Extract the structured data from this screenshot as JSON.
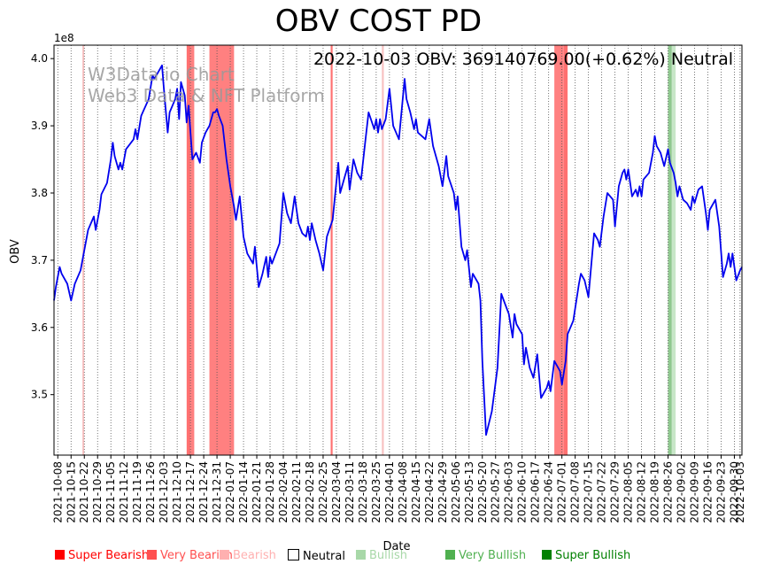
{
  "chart_data": {
    "type": "line",
    "title": "OBV COST PD",
    "annotation": "2022-10-03 OBV: 369140769.00(+0.62%) Neutral",
    "watermark": [
      "W3Data.io Chart",
      "Web3 Data & NFT Platform"
    ],
    "xlabel": "Date",
    "ylabel": "OBV",
    "y_multiplier_label": "1e8",
    "ylim": [
      3.41,
      4.02
    ],
    "y_ticks": [
      3.5,
      3.6,
      3.7,
      3.8,
      3.9,
      4.0
    ],
    "y_tick_labels": [
      "3.5",
      "3.6",
      "3.7",
      "3.8",
      "3.9",
      "4.0"
    ],
    "x_range": [
      "2021-10-06",
      "2022-10-04"
    ],
    "x_ticks": [
      "2021-10-08",
      "2021-10-15",
      "2021-10-22",
      "2021-10-29",
      "2021-11-05",
      "2021-11-12",
      "2021-11-19",
      "2021-11-26",
      "2021-12-03",
      "2021-12-10",
      "2021-12-17",
      "2021-12-24",
      "2021-12-31",
      "2022-01-07",
      "2022-01-14",
      "2022-01-21",
      "2022-01-28",
      "2022-02-04",
      "2022-02-11",
      "2022-02-18",
      "2022-02-25",
      "2022-03-04",
      "2022-03-11",
      "2022-03-18",
      "2022-03-25",
      "2022-04-01",
      "2022-04-08",
      "2022-04-15",
      "2022-04-22",
      "2022-04-29",
      "2022-05-06",
      "2022-05-13",
      "2022-05-20",
      "2022-05-27",
      "2022-06-03",
      "2022-06-10",
      "2022-06-17",
      "2022-06-24",
      "2022-07-01",
      "2022-07-08",
      "2022-07-15",
      "2022-07-22",
      "2022-07-29",
      "2022-08-05",
      "2022-08-12",
      "2022-08-19",
      "2022-08-26",
      "2022-09-02",
      "2022-09-09",
      "2022-09-16",
      "2022-09-23",
      "2022-09-30",
      "2022-10-03"
    ],
    "grid": "vertical dotted",
    "line_color": "#0000ee",
    "series": [
      {
        "values": [
          [
            "2021-10-06",
            3.64
          ],
          [
            "2021-10-07",
            3.66
          ],
          [
            "2021-10-09",
            3.69
          ],
          [
            "2021-10-10",
            3.68
          ],
          [
            "2021-10-13",
            3.665
          ],
          [
            "2021-10-15",
            3.64
          ],
          [
            "2021-10-17",
            3.665
          ],
          [
            "2021-10-20",
            3.685
          ],
          [
            "2021-10-24",
            3.745
          ],
          [
            "2021-10-27",
            3.765
          ],
          [
            "2021-10-28",
            3.745
          ],
          [
            "2021-10-30",
            3.775
          ],
          [
            "2021-10-31",
            3.798
          ],
          [
            "2021-11-03",
            3.815
          ],
          [
            "2021-11-05",
            3.85
          ],
          [
            "2021-11-06",
            3.875
          ],
          [
            "2021-11-07",
            3.855
          ],
          [
            "2021-11-09",
            3.835
          ],
          [
            "2021-11-10",
            3.845
          ],
          [
            "2021-11-11",
            3.835
          ],
          [
            "2021-11-13",
            3.865
          ],
          [
            "2021-11-17",
            3.88
          ],
          [
            "2021-11-18",
            3.895
          ],
          [
            "2021-11-19",
            3.88
          ],
          [
            "2021-11-21",
            3.915
          ],
          [
            "2021-11-25",
            3.94
          ],
          [
            "2021-11-27",
            3.975
          ],
          [
            "2021-11-28",
            3.97
          ],
          [
            "2021-11-30",
            3.98
          ],
          [
            "2021-12-02",
            3.99
          ],
          [
            "2021-12-03",
            3.955
          ],
          [
            "2021-12-05",
            3.89
          ],
          [
            "2021-12-06",
            3.92
          ],
          [
            "2021-12-09",
            3.94
          ],
          [
            "2021-12-10",
            3.955
          ],
          [
            "2021-12-11",
            3.91
          ],
          [
            "2021-12-12",
            3.965
          ],
          [
            "2021-12-14",
            3.945
          ],
          [
            "2021-12-15",
            3.905
          ],
          [
            "2021-12-16",
            3.93
          ],
          [
            "2021-12-18",
            3.85
          ],
          [
            "2021-12-20",
            3.86
          ],
          [
            "2021-12-22",
            3.845
          ],
          [
            "2021-12-23",
            3.875
          ],
          [
            "2021-12-25",
            3.89
          ],
          [
            "2021-12-27",
            3.9
          ],
          [
            "2021-12-29",
            3.92
          ],
          [
            "2021-12-30",
            3.92
          ],
          [
            "2021-12-31",
            3.925
          ],
          [
            "2022-01-01",
            3.915
          ],
          [
            "2022-01-03",
            3.9
          ],
          [
            "2022-01-05",
            3.85
          ],
          [
            "2022-01-07",
            3.81
          ],
          [
            "2022-01-09",
            3.78
          ],
          [
            "2022-01-10",
            3.76
          ],
          [
            "2022-01-12",
            3.795
          ],
          [
            "2022-01-14",
            3.735
          ],
          [
            "2022-01-16",
            3.71
          ],
          [
            "2022-01-19",
            3.695
          ],
          [
            "2022-01-20",
            3.72
          ],
          [
            "2022-01-22",
            3.66
          ],
          [
            "2022-01-24",
            3.68
          ],
          [
            "2022-01-26",
            3.705
          ],
          [
            "2022-01-27",
            3.675
          ],
          [
            "2022-01-28",
            3.705
          ],
          [
            "2022-01-29",
            3.695
          ],
          [
            "2022-02-02",
            3.725
          ],
          [
            "2022-02-04",
            3.8
          ],
          [
            "2022-02-06",
            3.77
          ],
          [
            "2022-02-08",
            3.755
          ],
          [
            "2022-02-10",
            3.795
          ],
          [
            "2022-02-12",
            3.755
          ],
          [
            "2022-02-14",
            3.74
          ],
          [
            "2022-02-16",
            3.735
          ],
          [
            "2022-02-17",
            3.75
          ],
          [
            "2022-02-18",
            3.73
          ],
          [
            "2022-02-19",
            3.755
          ],
          [
            "2022-02-21",
            3.73
          ],
          [
            "2022-02-23",
            3.71
          ],
          [
            "2022-02-25",
            3.685
          ],
          [
            "2022-02-27",
            3.735
          ],
          [
            "2022-03-02",
            3.76
          ],
          [
            "2022-03-05",
            3.845
          ],
          [
            "2022-03-06",
            3.8
          ],
          [
            "2022-03-08",
            3.82
          ],
          [
            "2022-03-10",
            3.84
          ],
          [
            "2022-03-11",
            3.805
          ],
          [
            "2022-03-13",
            3.85
          ],
          [
            "2022-03-15",
            3.83
          ],
          [
            "2022-03-17",
            3.82
          ],
          [
            "2022-03-19",
            3.87
          ],
          [
            "2022-03-21",
            3.92
          ],
          [
            "2022-03-24",
            3.895
          ],
          [
            "2022-03-25",
            3.91
          ],
          [
            "2022-03-26",
            3.89
          ],
          [
            "2022-03-27",
            3.91
          ],
          [
            "2022-03-28",
            3.895
          ],
          [
            "2022-03-30",
            3.91
          ],
          [
            "2022-04-01",
            3.955
          ],
          [
            "2022-04-03",
            3.9
          ],
          [
            "2022-04-06",
            3.88
          ],
          [
            "2022-04-09",
            3.97
          ],
          [
            "2022-04-10",
            3.94
          ],
          [
            "2022-04-12",
            3.92
          ],
          [
            "2022-04-14",
            3.895
          ],
          [
            "2022-04-15",
            3.91
          ],
          [
            "2022-04-16",
            3.89
          ],
          [
            "2022-04-20",
            3.88
          ],
          [
            "2022-04-22",
            3.91
          ],
          [
            "2022-04-24",
            3.87
          ],
          [
            "2022-04-27",
            3.84
          ],
          [
            "2022-04-29",
            3.81
          ],
          [
            "2022-05-01",
            3.855
          ],
          [
            "2022-05-02",
            3.825
          ],
          [
            "2022-05-05",
            3.8
          ],
          [
            "2022-05-06",
            3.775
          ],
          [
            "2022-05-07",
            3.795
          ],
          [
            "2022-05-09",
            3.72
          ],
          [
            "2022-05-11",
            3.7
          ],
          [
            "2022-05-12",
            3.715
          ],
          [
            "2022-05-14",
            3.66
          ],
          [
            "2022-05-15",
            3.68
          ],
          [
            "2022-05-18",
            3.665
          ],
          [
            "2022-05-19",
            3.64
          ],
          [
            "2022-05-20",
            3.55
          ],
          [
            "2022-05-22",
            3.44
          ],
          [
            "2022-05-25",
            3.475
          ],
          [
            "2022-05-28",
            3.54
          ],
          [
            "2022-05-30",
            3.65
          ],
          [
            "2022-06-01",
            3.635
          ],
          [
            "2022-06-03",
            3.62
          ],
          [
            "2022-06-05",
            3.585
          ],
          [
            "2022-06-06",
            3.62
          ],
          [
            "2022-06-07",
            3.605
          ],
          [
            "2022-06-10",
            3.59
          ],
          [
            "2022-06-11",
            3.545
          ],
          [
            "2022-06-12",
            3.57
          ],
          [
            "2022-06-14",
            3.54
          ],
          [
            "2022-06-16",
            3.525
          ],
          [
            "2022-06-18",
            3.56
          ],
          [
            "2022-06-20",
            3.495
          ],
          [
            "2022-06-23",
            3.51
          ],
          [
            "2022-06-24",
            3.52
          ],
          [
            "2022-06-25",
            3.505
          ],
          [
            "2022-06-27",
            3.55
          ],
          [
            "2022-06-30",
            3.535
          ],
          [
            "2022-07-01",
            3.515
          ],
          [
            "2022-07-03",
            3.55
          ],
          [
            "2022-07-04",
            3.59
          ],
          [
            "2022-07-07",
            3.61
          ],
          [
            "2022-07-10",
            3.665
          ],
          [
            "2022-07-11",
            3.68
          ],
          [
            "2022-07-13",
            3.67
          ],
          [
            "2022-07-15",
            3.645
          ],
          [
            "2022-07-18",
            3.74
          ],
          [
            "2022-07-20",
            3.73
          ],
          [
            "2022-07-21",
            3.72
          ],
          [
            "2022-07-23",
            3.765
          ],
          [
            "2022-07-25",
            3.8
          ],
          [
            "2022-07-28",
            3.79
          ],
          [
            "2022-07-29",
            3.75
          ],
          [
            "2022-07-31",
            3.81
          ],
          [
            "2022-08-02",
            3.83
          ],
          [
            "2022-08-03",
            3.835
          ],
          [
            "2022-08-04",
            3.82
          ],
          [
            "2022-08-05",
            3.835
          ],
          [
            "2022-08-07",
            3.795
          ],
          [
            "2022-08-09",
            3.805
          ],
          [
            "2022-08-10",
            3.795
          ],
          [
            "2022-08-11",
            3.81
          ],
          [
            "2022-08-12",
            3.795
          ],
          [
            "2022-08-13",
            3.82
          ],
          [
            "2022-08-16",
            3.83
          ],
          [
            "2022-08-18",
            3.86
          ],
          [
            "2022-08-19",
            3.885
          ],
          [
            "2022-08-20",
            3.87
          ],
          [
            "2022-08-22",
            3.86
          ],
          [
            "2022-08-24",
            3.84
          ],
          [
            "2022-08-26",
            3.865
          ],
          [
            "2022-08-27",
            3.845
          ],
          [
            "2022-08-29",
            3.83
          ],
          [
            "2022-08-30",
            3.815
          ],
          [
            "2022-08-31",
            3.795
          ],
          [
            "2022-09-01",
            3.81
          ],
          [
            "2022-09-03",
            3.79
          ],
          [
            "2022-09-05",
            3.785
          ],
          [
            "2022-09-07",
            3.775
          ],
          [
            "2022-09-08",
            3.795
          ],
          [
            "2022-09-09",
            3.785
          ],
          [
            "2022-09-11",
            3.805
          ],
          [
            "2022-09-13",
            3.81
          ],
          [
            "2022-09-15",
            3.77
          ],
          [
            "2022-09-16",
            3.745
          ],
          [
            "2022-09-17",
            3.775
          ],
          [
            "2022-09-20",
            3.79
          ],
          [
            "2022-09-22",
            3.75
          ],
          [
            "2022-09-24",
            3.675
          ],
          [
            "2022-09-26",
            3.695
          ],
          [
            "2022-09-27",
            3.71
          ],
          [
            "2022-09-28",
            3.69
          ],
          [
            "2022-09-29",
            3.71
          ],
          [
            "2022-10-01",
            3.67
          ],
          [
            "2022-10-03",
            3.685
          ],
          [
            "2022-10-04",
            3.69
          ]
        ]
      }
    ],
    "signal_bands": [
      {
        "start": "2021-10-21",
        "end": "2021-10-21",
        "level": "bearish",
        "color": "#f8c0c0"
      },
      {
        "start": "2021-12-15",
        "end": "2021-12-17",
        "level": "very_bearish",
        "color": "#ff7070"
      },
      {
        "start": "2021-12-17",
        "end": "2021-12-19",
        "level": "super_bearish",
        "color": "#ff8080"
      },
      {
        "start": "2021-12-27",
        "end": "2022-01-09",
        "level": "super_bearish",
        "color": "#ff8080"
      },
      {
        "start": "2022-03-01",
        "end": "2022-03-02",
        "level": "very_bearish",
        "color": "#ff7070"
      },
      {
        "start": "2022-03-28",
        "end": "2022-03-29",
        "level": "bearish",
        "color": "#f8c0c0"
      },
      {
        "start": "2022-06-27",
        "end": "2022-07-02",
        "level": "super_bearish",
        "color": "#ff8080"
      },
      {
        "start": "2022-07-02",
        "end": "2022-07-04",
        "level": "very_bearish",
        "color": "#ff7070"
      },
      {
        "start": "2022-08-26",
        "end": "2022-08-28",
        "level": "very_bullish",
        "color": "#90c890"
      },
      {
        "start": "2022-08-28",
        "end": "2022-08-30",
        "level": "bullish",
        "color": "#c8e6c8"
      }
    ],
    "legend": [
      {
        "label": "Super Bearish",
        "color": "#ff0000",
        "text_color": "#ff0000"
      },
      {
        "label": "Very Bearish",
        "color": "#ff5050",
        "text_color": "#ff5050"
      },
      {
        "label": "Bearish",
        "color": "#ffb0b0",
        "text_color": "#ffb0b0"
      },
      {
        "label": "Neutral",
        "color": "#ffffff",
        "text_color": "#000000"
      },
      {
        "label": "Bullish",
        "color": "#a8d8a8",
        "text_color": "#a8d8a8"
      },
      {
        "label": "Very Bullish",
        "color": "#50b050",
        "text_color": "#50b050"
      },
      {
        "label": "Super Bullish",
        "color": "#008000",
        "text_color": "#008000"
      }
    ],
    "legend_placement": "bottom"
  }
}
